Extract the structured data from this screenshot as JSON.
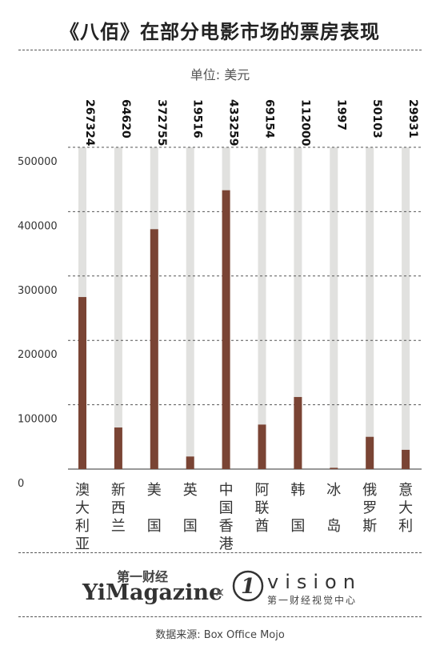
{
  "title": "《八佰》在部分电影市场的票房表现",
  "unit_label": "单位: 美元",
  "source_label": "数据来源: Box Office Mojo",
  "logos": {
    "left_cn": "第一财经",
    "left_en": "YiMagazine",
    "separator": "×",
    "right_en": "vision",
    "right_cn": "第一财经视觉中心"
  },
  "colors": {
    "bar": "#7a4434",
    "track": "#e1e1df",
    "grid": "#555555"
  },
  "chart_data": {
    "type": "bar",
    "title": "《八佰》在部分电影市场的票房表现",
    "ylabel": "单位: 美元",
    "ylim": [
      0,
      500000
    ],
    "yticks": [
      "0",
      "100000",
      "200000",
      "300000",
      "400000",
      "500000"
    ],
    "categories": [
      "澳大利亚",
      "新西兰",
      "美国",
      "英国",
      "中国香港",
      "阿联酋",
      "韩国",
      "冰岛",
      "俄罗斯",
      "意大利"
    ],
    "category_glyphs": [
      [
        "澳",
        "大",
        "利",
        "亚"
      ],
      [
        "新",
        "西",
        "兰"
      ],
      [
        "美",
        "",
        "国"
      ],
      [
        "英",
        "",
        "国"
      ],
      [
        "中",
        "国",
        "香",
        "港"
      ],
      [
        "阿",
        "联",
        "酋"
      ],
      [
        "韩",
        "",
        "国"
      ],
      [
        "冰",
        "",
        "岛"
      ],
      [
        "俄",
        "罗",
        "斯"
      ],
      [
        "意",
        "大",
        "利"
      ]
    ],
    "values": [
      267324,
      64620,
      372755,
      19516,
      433259,
      69154,
      112000,
      1997,
      50103,
      29931
    ],
    "value_labels": [
      "267324",
      "64620",
      "372755",
      "19516",
      "433259",
      "69154",
      "112000",
      "1997",
      "50103",
      "29931"
    ],
    "grid": true
  }
}
